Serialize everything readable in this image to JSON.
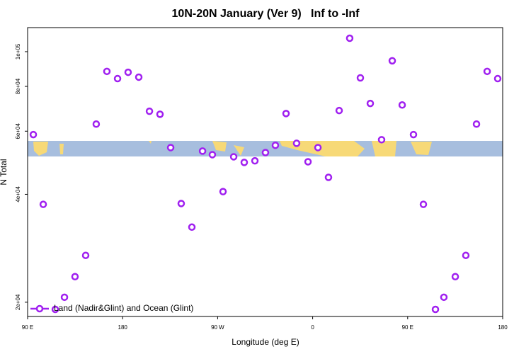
{
  "chart_data": {
    "type": "scatter",
    "title": "10N-20N January (Ver 9)   Inf to -Inf",
    "x_label": "Longitude (deg E)",
    "y_label": "N Total",
    "xlim": [
      90,
      540
    ],
    "xticks": [
      {
        "value": 90,
        "label": "90 E"
      },
      {
        "value": 180,
        "label": "180"
      },
      {
        "value": 270,
        "label": "90 W"
      },
      {
        "value": 360,
        "label": "0"
      },
      {
        "value": 450,
        "label": "90 E"
      },
      {
        "value": 540,
        "label": "180"
      }
    ],
    "ylim": [
      18250,
      116700
    ],
    "yscale": "log",
    "yticks": [
      {
        "value": 20000,
        "label": "2e+04"
      },
      {
        "value": 40000,
        "label": "4e+04"
      },
      {
        "value": 60000,
        "label": "6e+04"
      },
      {
        "value": 80000,
        "label": "8e+04"
      },
      {
        "value": 100000,
        "label": "1e+05"
      }
    ],
    "legend": "lower left",
    "x": [
      95.4,
      104.8,
      116.2,
      124.9,
      134.9,
      145,
      155,
      165.1,
      175.2,
      185.2,
      195.3,
      205.4,
      215.4,
      225.5,
      235.5,
      245.6,
      255.7,
      265,
      275.1,
      285.2,
      295.2,
      305.3,
      315.3,
      324.7,
      334.8,
      344.8,
      355.6,
      365,
      375,
      385.1,
      395.1,
      405.2,
      414.6,
      425.3,
      435.4,
      444.8,
      455.5,
      464.9,
      476.3,
      484.3,
      495.1,
      505.1,
      515.2,
      525.3,
      535.3
    ],
    "series": [
      {
        "name": "Land (Nadir&Glint) and Ocean (Glint)",
        "color": "#a020f0",
        "values": [
          58700,
          37500,
          19100,
          20650,
          23570,
          27020,
          62800,
          88100,
          84100,
          87600,
          84900,
          68200,
          66900,
          54000,
          37700,
          32400,
          52800,
          51600,
          40700,
          50900,
          49100,
          49600,
          52300,
          54800,
          67200,
          55500,
          49300,
          54000,
          44600,
          68500,
          109000,
          84500,
          71700,
          56800,
          94300,
          71000,
          58700,
          37500,
          19100,
          20650,
          23570,
          27020,
          62800,
          88100,
          84100
        ]
      }
    ]
  }
}
